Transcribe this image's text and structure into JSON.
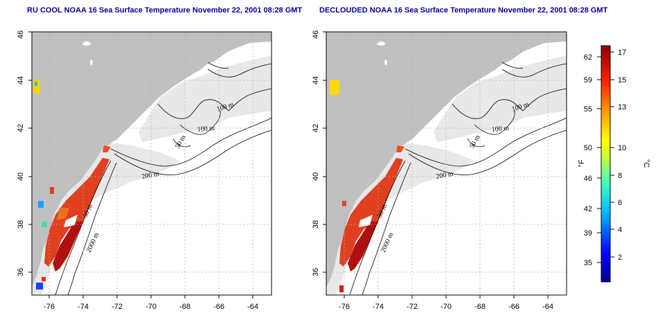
{
  "panels": [
    {
      "title": "RU COOL NOAA 16 Sea Surface Temperature November 22, 2001 08:28 GMT",
      "variant": "raw"
    },
    {
      "title": "DECLOUDED NOAA 16 Sea Surface Temperature November 22, 2001 08:28 GMT",
      "variant": "declouded"
    }
  ],
  "axes": {
    "lon_ticks": [
      "-76",
      "-74",
      "-72",
      "-70",
      "-68",
      "-66",
      "-64"
    ],
    "lat_ticks": [
      "36",
      "38",
      "40",
      "42",
      "44",
      "46"
    ]
  },
  "contour_labels": [
    "100 m",
    "100 m",
    "50 m",
    "200 m",
    "50 m",
    "2000 m"
  ],
  "colorbar": {
    "unit_f": "°F",
    "unit_c": "°C",
    "f_ticks": [
      "62",
      "59",
      "55",
      "50",
      "46",
      "42",
      "39",
      "35"
    ],
    "c_ticks": [
      "17",
      "15",
      "13",
      "10",
      "8",
      "6",
      "4",
      "2"
    ]
  },
  "colors": {
    "land": "#c0c0c0",
    "shelf": "#e8e8e8",
    "title": "#0000a0",
    "sst_warm": "#d42a10",
    "sst_hot": "#b01010"
  }
}
